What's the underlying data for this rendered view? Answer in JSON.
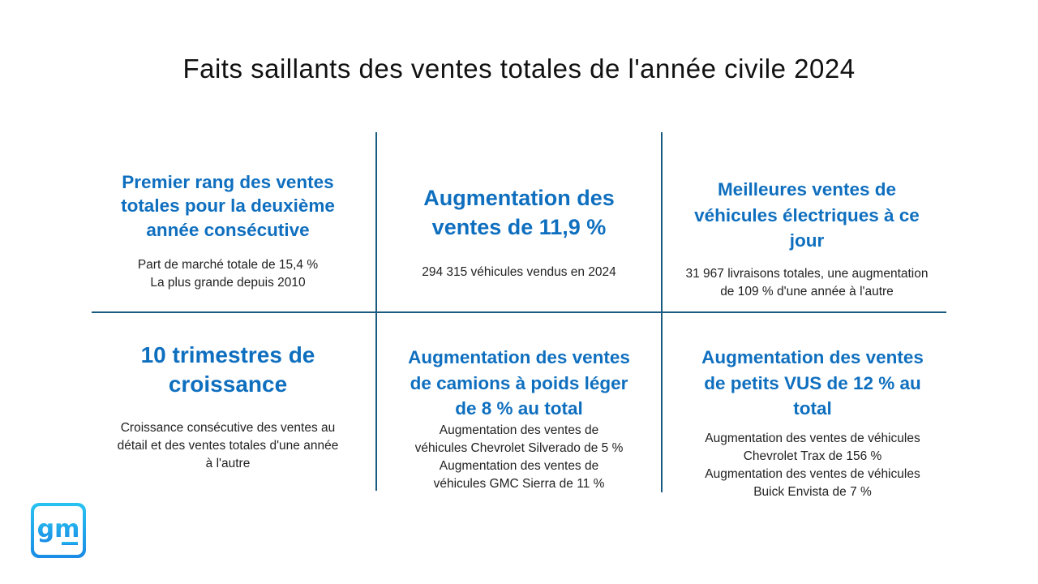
{
  "title": "Faits saillants des ventes totales de l'année civile 2024",
  "colors": {
    "heading": "#0f6fbf",
    "divider": "#1b5a80",
    "logo_gradient": [
      "#29c3f0",
      "#1a8be6"
    ]
  },
  "cells": [
    {
      "heading": [
        "Premier rang des ventes",
        "totales pour la deuxième",
        "année consécutive"
      ],
      "details": [
        "Part de marché totale de 15,4 %",
        "La plus grande depuis 2010"
      ]
    },
    {
      "heading": [
        "Augmentation des",
        "ventes de 11,9 %"
      ],
      "details": [
        "294 315 véhicules vendus en 2024"
      ]
    },
    {
      "heading": [
        "Meilleures ventes de",
        "véhicules électriques à ce",
        "jour"
      ],
      "details": [
        "31 967 livraisons totales, une augmentation",
        "de 109 % d'une année à l'autre"
      ]
    },
    {
      "heading": [
        "10 trimestres de",
        "croissance"
      ],
      "details": [
        "Croissance consécutive des ventes au",
        "détail et des ventes totales d'une année",
        "à l'autre"
      ]
    },
    {
      "heading": [
        "Augmentation des ventes",
        "de camions à poids léger",
        "de 8 % au total"
      ],
      "details": [
        "Augmentation des ventes de",
        "véhicules Chevrolet Silverado de 5 %",
        "Augmentation des ventes de",
        "véhicules GMC Sierra de 11 %"
      ]
    },
    {
      "heading": [
        "Augmentation des ventes",
        "de petits VUS de 12 % au",
        "total"
      ],
      "details": [
        "Augmentation des ventes de véhicules",
        "Chevrolet Trax de 156 %",
        "Augmentation des ventes de véhicules",
        "Buick Envista de 7 %"
      ]
    }
  ],
  "logo": {
    "text": "gm"
  }
}
